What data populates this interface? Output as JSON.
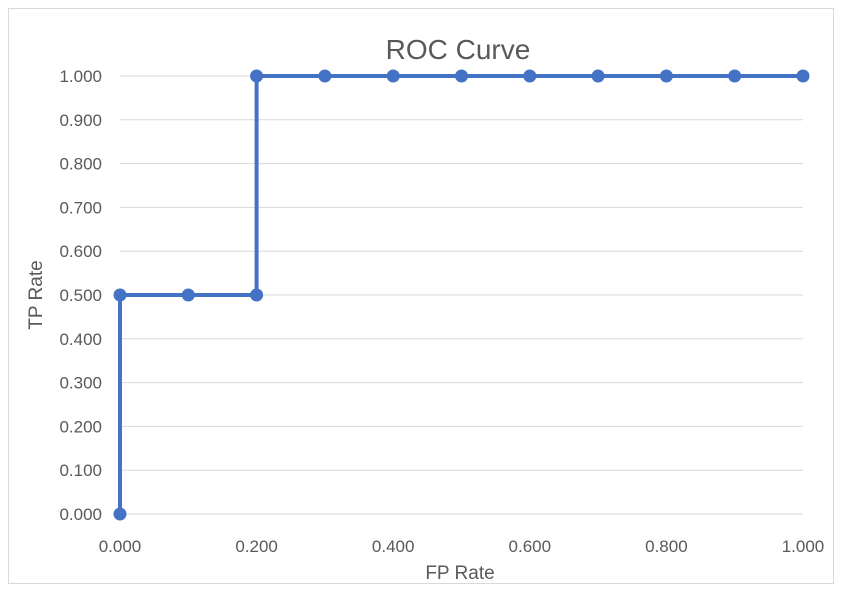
{
  "chart_data": {
    "type": "line",
    "title": "ROC Curve",
    "xlabel": "FP Rate",
    "ylabel": "TP Rate",
    "xlim": [
      0,
      1
    ],
    "ylim": [
      0,
      1
    ],
    "x_ticks": [
      "0.000",
      "0.200",
      "0.400",
      "0.600",
      "0.800",
      "1.000"
    ],
    "y_ticks": [
      "0.000",
      "0.100",
      "0.200",
      "0.300",
      "0.400",
      "0.500",
      "0.600",
      "0.700",
      "0.800",
      "0.900",
      "1.000"
    ],
    "grid": true,
    "series": [
      {
        "color": "#4472c4",
        "points": [
          {
            "x": 0.0,
            "y": 0.0
          },
          {
            "x": 0.0,
            "y": 0.5
          },
          {
            "x": 0.1,
            "y": 0.5
          },
          {
            "x": 0.2,
            "y": 0.5
          },
          {
            "x": 0.2,
            "y": 1.0
          },
          {
            "x": 0.3,
            "y": 1.0
          },
          {
            "x": 0.4,
            "y": 1.0
          },
          {
            "x": 0.5,
            "y": 1.0
          },
          {
            "x": 0.6,
            "y": 1.0
          },
          {
            "x": 0.7,
            "y": 1.0
          },
          {
            "x": 0.8,
            "y": 1.0
          },
          {
            "x": 0.9,
            "y": 1.0
          },
          {
            "x": 1.0,
            "y": 1.0
          }
        ]
      }
    ]
  }
}
